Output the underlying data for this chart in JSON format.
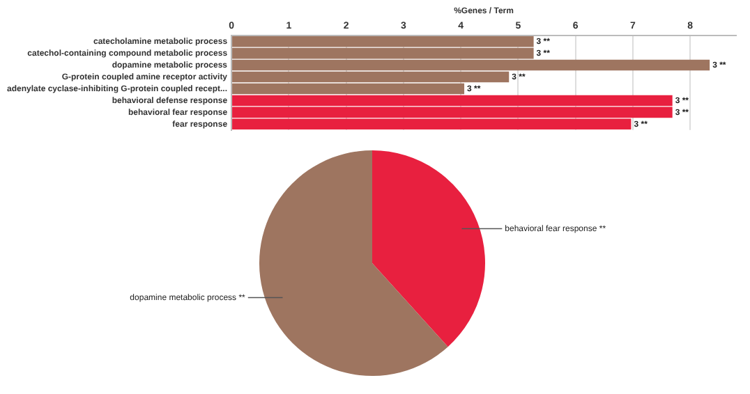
{
  "chart_data": [
    {
      "type": "bar",
      "orientation": "horizontal",
      "xlabel": "%Genes / Term",
      "categories": [
        "catecholamine metabolic process",
        "catechol-containing compound metabolic process",
        "dopamine metabolic process",
        "G-protein coupled amine receptor activity",
        "adenylate cyclase-inhibiting G-protein coupled recept...",
        "behavioral defense response",
        "behavioral fear response",
        "fear response"
      ],
      "values": [
        5.27,
        5.27,
        8.34,
        4.84,
        4.06,
        7.69,
        7.69,
        6.97
      ],
      "colors": [
        "#9e7560",
        "#9e7560",
        "#9e7560",
        "#9e7560",
        "#9e7560",
        "#e8203f",
        "#e8203f",
        "#e8203f"
      ],
      "annotations": [
        {
          "text": "3 **",
          "x": 5.27,
          "y": "catecholamine metabolic process"
        },
        {
          "text": "3 **",
          "x": 5.27,
          "y": "catechol-containing compound metabolic process"
        },
        {
          "text": "3 **",
          "x": 8.34,
          "y": "dopamine metabolic process"
        },
        {
          "text": "3 **",
          "x": 4.84,
          "y": "G-protein coupled amine receptor activity"
        },
        {
          "text": "3 **",
          "x": 4.06,
          "y": "adenylate cyclase-inhibiting G-protein coupled recept..."
        },
        {
          "text": "3 **",
          "x": 7.69,
          "y": "behavioral defense response"
        },
        {
          "text": "3 **",
          "x": 7.69,
          "y": "behavioral fear response"
        },
        {
          "text": "3 **",
          "x": 6.97,
          "y": "fear response"
        }
      ],
      "xlim": [
        0,
        8.8
      ],
      "xticks": [
        0,
        1,
        2,
        3,
        4,
        5,
        6,
        7,
        8
      ],
      "grid": "x",
      "legend": false
    },
    {
      "type": "pie",
      "categories": [
        "behavioral fear response **",
        "dopamine metabolic process **"
      ],
      "values": [
        38.3,
        61.7
      ],
      "colors": [
        "#e8203f",
        "#9e7560"
      ],
      "legend": false
    }
  ]
}
